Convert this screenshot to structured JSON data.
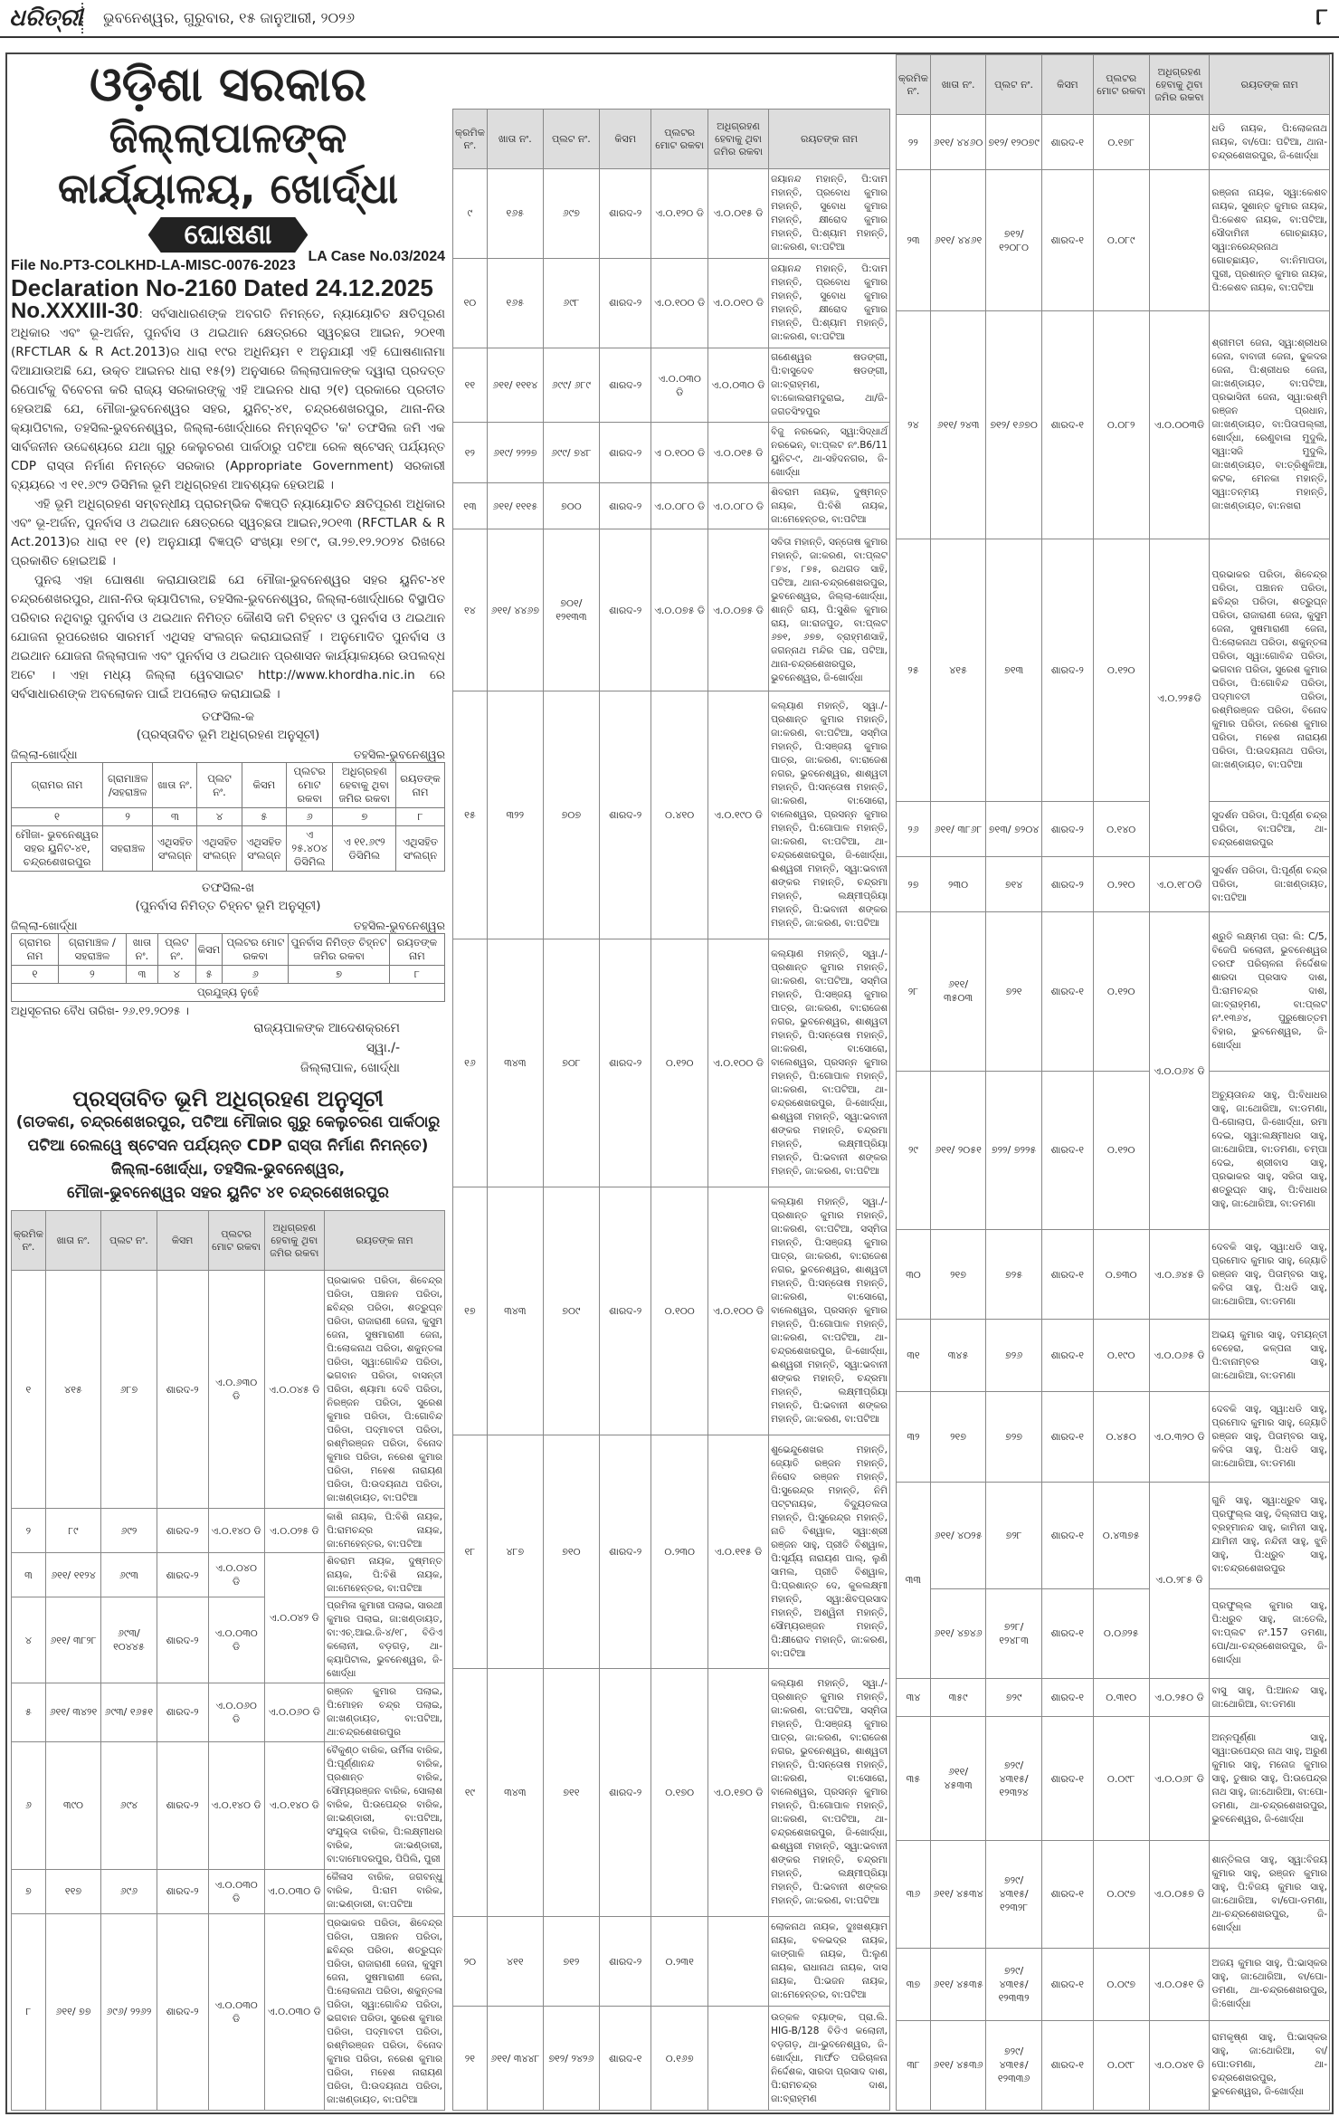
{
  "header": {
    "logo": "ଧରିତ୍ରୀ",
    "dateline": "ଭୁବନେଶ୍ୱର, ଗୁରୁବାର, ୧୫ ଜାନୁଆରୀ, ୨୦୨୬",
    "page": "୮"
  },
  "notice": {
    "title1": "ଓଡ଼ିଶା ସରକାର",
    "title2": "ଜିଲ୍ଲାପାଳଙ୍କ କାର୍ଯ୍ୟାଳୟ, ଖୋର୍ଦ୍ଧା",
    "banner": "ଘୋଷଣା",
    "file_no": "File No.PT3-COLKHD-LA-MISC-0076-2023",
    "declaration": "Declaration No-2160 Dated 24.12.2025",
    "la_case": "LA Case No.03/2024",
    "ref_no": "No.XXXIII-30",
    "para1": ": ସର୍ବସାଧାରଣଙ୍କ ଅବଗତି ନିମନ୍ତେ, ନ୍ୟାୟୋଚିତ କ୍ଷତିପୂରଣ ଅଧିକାର ଏବଂ ଭୂ-ଅର୍ଜନ, ପୁନର୍ବାସ ଓ ଥଇଥାନ କ୍ଷେତ୍ରରେ ସ୍ୱଚ୍ଛତା ଆଇନ, ୨୦୧୩ (RFCTLAR & R Act.2013)ର ଧାରା ୧୯ର ଅଧିନିୟମ ୧ ଅନୁଯାୟୀ ଏହି ଘୋଷଣାନାମା ଦିଆଯାଉଅଛି ଯେ, ଉକ୍ତ ଆଇନର ଧାରା ୧୫(୨) ଅନୁସାରେ ଜିଲ୍ଲାପାଳଙ୍କ ଦ୍ୱାରା ପ୍ରଦତ୍ତ ରିପୋର୍ଟକୁ ବିବେଚନା କରି ରାଜ୍ୟ ସରକାରଙ୍କୁ ଏହି ଆଇନର ଧାରା ୨(୧) ପ୍ରକାରେ ପ୍ରତୀତ ହେଉଅଛି ଯେ, ମୌଜା-ଭୁବନେଶ୍ୱର ସହର, ୟୁନିଟ୍-୪୧, ଚନ୍ଦ୍ରଶେଖରପୁର, ଥାନା-ନିଉ କ୍ୟାପିଟାଲ, ତହସିଲ-ଭୁବନେଶ୍ୱର, ଜିଲ୍ଲା-ଖୋର୍ଦ୍ଧାରେ ନିମ୍ନସୂଚିତ 'କ' ତଫସିଲ ଜମି ଏକ ସାର୍ବଜନୀନ ଉଦ୍ଦେଶ୍ୟରେ ଯଥା ଗୁରୁ କେଲୁଚରଣ ପାର୍କଠାରୁ ପଟିଆ ରେଳ ଷ୍ଟେସନ୍ ପର୍ଯ୍ୟନ୍ତ CDP ରାସ୍ତା ନିର୍ମାଣ ନିମନ୍ତେ ସରକାର (Appropriate Government) ସରକାରୀ ବ୍ୟୟରେ ଏ ୧୧.୬୯୨ ଡିସିମିଲ ଭୂମି ଅଧିଗ୍ରହଣ ଆବଶ୍ୟକ ହେଉଅଛି ।",
    "para2": "ଏହି ଭୂମି ଅଧିଗ୍ରହଣ ସମ୍ବନ୍ଧୀୟ ପ୍ରାରମ୍ଭିକ ବିଜ୍ଞପ୍ତି ନ୍ୟାୟୋଚିତ କ୍ଷତିପୂରଣ ଅଧିକାର ଏବଂ ଭୂ-ଅର୍ଜନ, ପୁନର୍ବାସ ଓ ଥଇଥାନ କ୍ଷେତ୍ରରେ ସ୍ୱଚ୍ଛତା ଆଇନ,୨୦୧୩ (RFCTLAR & R Act.2013)ର ଧାରା ୧୧ (୧) ଅନୁଯାୟୀ ବିଜ୍ଞପ୍ତି ସଂଖ୍ୟା ୧୭୮୯, ତା.୨୭.୧୨.୨୦୨୪ ରିଖରେ ପ୍ରକାଶିତ ହୋଇଅଛି ।",
    "para3": "ପୁନଶ୍ଚ ଏହା ଘୋଷଣା କରାଯାଉଅଛି ଯେ ମୌଜା-ଭୁବନେଶ୍ୱର ସହର ୟୁନିଟ-୪୧ ଚନ୍ଦ୍ରଶେଖରପୁର, ଥାନା-ନିଉ କ୍ୟାପିଟାଲ, ତହସିଲ-ଭୁବନେଶ୍ୱର, ଜିଲ୍ଲା-ଖୋର୍ଦ୍ଧାରେ ବିସ୍ଥାପିତ ପରିବାର ନଥିବାରୁ ପୁନର୍ବାସ ଓ ଥଇଥାନ ନିମିତ୍ତ କୌଣସି ଜମି ଚିହ୍ନଟ ଓ ପୁନର୍ବାସ ଓ ଥଇଥାନ ଯୋଜନା ରୂପରେଖର ସାରମର୍ମ ଏଥିସହ ସଂଲଗ୍ନ କରାଯାଇନାହିଁ । ଅନୁମୋଦିତ ପୁନର୍ବାସ ଓ ଥଇଥାନ ଯୋଜନା ଜିଲ୍ଲାପାଳ ଏବଂ ପୁନର୍ବାସ ଓ ଥଇଥାନ ପ୍ରଶାସନ କାର୍ଯ୍ୟାଳୟରେ ଉପଲବ୍ଧ ଅଟେ । ଏହା ମଧ୍ୟ ଜିଲ୍ଲା ୱେବସାଇଟ http://www.khordha.nic.in ରେ ସର୍ବସାଧାରଣଙ୍କ ଅବଲୋକନ ପାଇଁ ଅପଲୋଡ କରାଯାଇଛି ।",
    "schedule_ka": {
      "title": "ତଫସିଲ-କ",
      "subtitle": "(ପ୍ରସ୍ତାବିତ ଭୂମି ଅଧିଗ୍ରହଣ ଅନୁସୂଚୀ)",
      "district": "ଜିଲ୍ଲା-ଖୋର୍ଦ୍ଧା",
      "tahasil": "ତହସିଲ-ଭୁବନେଶ୍ୱର",
      "headers": [
        "ଗ୍ରାମର ନାମ",
        "ଗ୍ରାମାଞ୍ଚଳ /ସହରାଞ୍ଚଳ",
        "ଖାତା ନଂ.",
        "ପ୍ଲଟ ନଂ.",
        "କିସମ",
        "ପ୍ଲଟର ମୋଟ ରକବା",
        "ଅଧିଗ୍ରହଣ ହେବାକୁ ଥିବା ଜମିର ରକବା",
        "ରୟତଙ୍କ ନାମ"
      ],
      "numbers": [
        "୧",
        "୨",
        "୩",
        "୪",
        "୫",
        "୬",
        "୭",
        "୮"
      ],
      "row": [
        "ମୌଜା- ଭୁବନେଶ୍ୱର ସହର ୟୁନିଟ-୪୧, ଚନ୍ଦ୍ରଶେଖରପୁର",
        "ସହରାଞ୍ଚଳ",
        "ଏଥିସହିତ ସଂଲଗ୍ନ",
        "ଏଥିସହିତ ସଂଲଗ୍ନ",
        "ଏଥିସହିତ ସଂଲଗ୍ନ",
        "ଏ ୨୫.୪୦୪ ଡିସିମିଲ",
        "ଏ ୧୧.୬୯୨ ଡିସିମିଲ",
        "ଏଥିସହିତ ସଂଲଗ୍ନ"
      ]
    },
    "schedule_kha": {
      "title": "ତଫସିଲ-ଖ",
      "subtitle": "(ପୁନର୍ବାସ ନିମିତ୍ତ ଚିହ୍ନଟ ଭୂମି ଅନୁସୂଚୀ)",
      "district": "ଜିଲ୍ଲା-ଖୋର୍ଦ୍ଧା",
      "tahasil": "ତହସିଲ-ଭୁବନେଶ୍ୱର",
      "headers": [
        "ଗ୍ରାମର ନାମ",
        "ଗ୍ରାମାଞ୍ଚଳ /ସହରାଞ୍ଚଳ",
        "ଖାତା ନଂ.",
        "ପ୍ଲଟ ନଂ.",
        "କିସମ",
        "ପ୍ଲଟର ମୋଟ ରକବା",
        "ପୁନର୍ବାସ ନିମିତ୍ତ ଚିହ୍ନଟ ଜମିର ରକବା",
        "ରୟତଙ୍କ ନାମ"
      ],
      "numbers": [
        "୧",
        "୨",
        "୩",
        "୪",
        "୫",
        "୬",
        "୭",
        "୮"
      ],
      "row": "ପ୍ରଯୁଜ୍ୟ ନୁହେଁ"
    },
    "validity": "ଅଧିସୂଚନାର ବୈଧ ତାରିଖ- ୨୬.୧୨.୨୦୨୫ ।",
    "sign1": "ରାଜ୍ୟପାଳଙ୍କ ଆଦେଶକ୍ରମେ",
    "sign2": "ସ୍ୱା./-",
    "sign3": "ଜିଲ୍ଲାପାଳ, ଖୋର୍ଦ୍ଧା"
  },
  "schedule": {
    "heading": "ପ୍ରସ୍ତାବିତ ଭୂମି ଅଧିଗ୍ରହଣ ଅନୁସୂଚୀ",
    "line1": "(ଗଡକଣ, ଚନ୍ଦ୍ରଶେଖରପୁର, ପଟିଆ ମୌଜାର ଗୁରୁ କେଲୁଚରଣ ପାର୍କଠାରୁ",
    "line2": "ପଟିଆ ରେଲୱେ ଷ୍ଟେସନ ପର୍ଯ୍ୟନ୍ତ CDP ରାସ୍ତା ନିର୍ମାଣ ନିମନ୍ତେ)",
    "line3": "ଜିଲ୍ଲା-ଖୋର୍ଦ୍ଧା, ତହସିଲ-ଭୁବନେଶ୍ୱର,",
    "line4": "ମୌଜା-ଭୁବନେଶ୍ୱର ସହର ୟୁନିଟ ୪୧ ଚନ୍ଦ୍ରଶେଖରପୁର",
    "columns": [
      "କ୍ରମିକ ନଂ.",
      "ଖାତା ନଂ.",
      "ପ୍ଲଟ ନଂ.",
      "କିସମ",
      "ପ୍ଲଟର ମୋଟ ରକବା",
      "ଅଧିଗ୍ରହଣ ହେବାକୁ ଥିବା ଜମିର ରକବା",
      "ରୟତଙ୍କ ନାମ"
    ],
    "tables": [
      [
        {
          "sl": "୧",
          "khata": "୪୧୫",
          "plot": "୬୮୭",
          "kisam": "ଶାରଦ-୨",
          "total": "ଏ.୦.୬୩୦ ଡି",
          "acq": "ଏ.୦.୦୪୫ ଡି",
          "owner": "ପ୍ରଭାକର ପରିଡା, ଶିବେନ୍ଦ୍ର ପରିଡା, ପଞ୍ଚାନନ ପରିଡା, ଛବିନ୍ଦ୍ର ପରିଡା, ଶତ୍ରୁଘ୍ନ ପରିଡା, ରାଜାରାଣୀ ଜେନା, କୁସୁମ ଜେନା, ସୁଷମାରାଣୀ ଜେନା, ପି:ଲୋକନାଥ ପରିଡା, ଶକୁନ୍ତଳା ପରିଡା, ସ୍ୱା:ଗୋବିନ୍ଦ ପରିଡା, ଭଗବାନ ପରିଡା, ବାସନ୍ତୀ ପରିଡା, ଶ୍ୟାମା ଦେବି ପରିଡା, ନିରଞ୍ଜନ ପରିଡା, ସୁରେଶ କୁମାର ପରିଡା, ପି:ଗୋବିନ୍ଦ ପରିଡା, ପଦ୍ମାବତୀ ପରିଡା, ରଶ୍ମିରଞ୍ଜନ ପରିଡା, ବିନୋଦ କୁମାର ପରିଡା, ନରେଶ କୁମାର ପରିଡା, ମହେଶ ନାରାୟଣ ପରିଡା, ପି:ଉଦୟନାଥ ପରିଡା, ଜା:ଖଣ୍ଡାୟତ, ବା:ପଟିଆ"
        },
        {
          "sl": "୨",
          "khata": "୮୯",
          "plot": "୬୯୨",
          "kisam": "ଶାରଦ-୨",
          "total": "ଏ.୦.୧୪୦ ଡି",
          "acq": "ଏ.୦.୦୨୫ ଡି",
          "owner": "କାଶି ନାୟକ, ପି:ବିଶି ନାୟକ, ପି:ରାମଚନ୍ଦ୍ର ନାୟକ, ଜା:ମେହେନ୍ତର, ବା:ପଟିଆ"
        },
        {
          "sl": "୩",
          "khata": "୬୧୧/ ୧୧୨୪",
          "plot": "୬୯୩",
          "kisam": "ଶାରଦ-୨",
          "total": "ଏ.୦.୦୪୦ ଡି",
          "acq": "ଏ.୦.୦୪୨ ଡି",
          "acq_span": 2,
          "owner": "ଶିବରାମ ନାୟକ, ଦୁଷ୍ମନ୍ତ ନାୟକ, ପି:ବିଶି ନାୟକ, ଜା:ମେହେନ୍ତର, ବା:ପଟିଆ"
        },
        {
          "sl": "୪",
          "khata": "୬୧୧/ ୩୮୨୮",
          "plot": "୬୯୩/ ୧୦୪୪୫",
          "kisam": "ଶାରଦ-୨",
          "total": "ଏ.୦.୦୩୦ ଡି",
          "owner": "ପ୍ରମିଳା କୁମାରୀ ପଲାଇ, ସାରଥୀ କୁମାର ପଲାଇ, ଜା:ଖଣ୍ଡାୟତ, ବା:ଏଚ୍.ଆଇ.ଜି-୪/୧୮, ବିଡିଏ କଲୋନୀ, ବଡ଼ଗଡ଼, ଥା-କ୍ୟାପିଟାଲ, ଭୁବନେଶ୍ୱର, ଜି-ଖୋର୍ଦ୍ଧା"
        },
        {
          "sl": "୫",
          "khata": "୬୧୧/ ୩୪୨୧",
          "plot": "୬୯୩/ ୧୬୫୧",
          "kisam": "ଶାରଦ-୨",
          "total": "ଏ.୦.୦୬୦ ଡି",
          "acq": "ଏ.୦.୦୬୦ ଡି",
          "owner": "ରଞ୍ଜନ କୁମାର ପଲାଇ, ପି:ମୋହନ ଚନ୍ଦ୍ର ପଲାଇ, ଜା:ଖଣ୍ଡାୟତ, ବା:ପଟିଆ, ଥା:ଚନ୍ଦ୍ରଶେଖରପୁର"
        },
        {
          "sl": "୬",
          "khata": "୩୯୦",
          "plot": "୬୯୪",
          "kisam": "ଶାରଦ-୨",
          "total": "ଏ.୦.୧୪୦ ଡି",
          "acq": "ଏ.୦.୧୪୦ ଡି",
          "owner": "ବୈକୁଣ୍ଠ ବାରିକ, ଉର୍ମିଳା ବାରିକ, ପି:ପୂର୍ଣ୍ଣାନନ୍ଦ ବାରିକ, ପ୍ରଶାନ୍ତ ବାରିକ, ସୌମ୍ୟରଞ୍ଜନ ବାରିକ, ସୋଲାଶ ବାରିକ, ପି:ଉପେନ୍ଦ୍ର ବାରିକ, ଜା:ଭଣ୍ଡାରୀ, ବା:ପଟିଆ, ସଂଯୁକ୍ତା ବାରିକ, ପି:ଲକ୍ଷ୍ମୀଧର ବାରିକ, ଜା:ଭଣ୍ଡାରୀ, ବା:ଦାମୋଦରପୁର, ପିପିଲି, ପୁରୀ"
        },
        {
          "sl": "୭",
          "khata": "୧୧୭",
          "plot": "୬୯୬",
          "kisam": "ଶାରଦ-୨",
          "total": "ଏ.୦.୦୩୦ ଡି",
          "acq": "ଏ.୦.୦୩୦ ଡି",
          "owner": "କୈଳାସ ବାରିକ, ଜଗବନ୍ଧୁ ବାରିକ, ପି:ରାମ ବାରିକ, ଜା:ଭଣ୍ଡାରୀ, ବା:ପଟିଆ"
        },
        {
          "sl": "୮",
          "khata": "୬୧୧/ ୭୭",
          "plot": "୬୯୬/ ୨୨୬୨",
          "kisam": "ଶାରଦ-୨",
          "total": "ଏ.୦.୦୩୦ ଡି",
          "acq": "ଏ.୦.୦୩୦ ଡି",
          "owner": "ପ୍ରଭାକର ପରିଡା, ଶିବେନ୍ଦ୍ର ପରିଡା, ପଞ୍ଚାନନ ପରିଡା, ଛବିନ୍ଦ୍ର ପରିଡା, ଶତ୍ରୁଘ୍ନ ପରିଡା, ରାଜାରାଣୀ ଜେନା, କୁସୁମ ଜେନା, ସୁଷମାରାଣୀ ଜେନା, ପି:ଲୋକନାଥ ପରିଡା, ଶକୁନ୍ତଳା ପରିଡା, ସ୍ୱା:ଗୋବିନ୍ଦ ପରିଡା, ଭଗବାନ ପରିଡା, ସୁରେଶ କୁମାର ପରିଡା, ପଦ୍ମାବତୀ ପରିଡା, ରଶ୍ମିରଞ୍ଜନ ପରିଡା, ବିନୋଦ କୁମାର ପରିଡା, ନରେଶ କୁମାର ପରିଡା, ମହେଶ ନାରାୟଣ ପରିଡା, ପି:ଉଦୟନାଥ ପରିଡା, ଜା:ଖଣ୍ଡାୟତ, ବା:ପଟିଆ"
        }
      ],
      [
        {
          "sl": "୯",
          "khata": "୧୬୫",
          "plot": "୬୯୭",
          "kisam": "ଶାରଦ-୨",
          "total": "ଏ.୦.୧୨୦ ଡି",
          "acq": "ଏ.୦.୦୧୫ ଡି",
          "owner": "ଜୟାନନ୍ଦ ମହାନ୍ତି, ପି:ଦାମ ମହାନ୍ତି, ପ୍ରବୋଧ କୁମାର ମହାନ୍ତି, ସୁବୋଧ କୁମାର ମହାନ୍ତି, କ୍ଷୀରୋଦ କୁମାର ମହାନ୍ତି, ପି:ଶ୍ୟାମ ମହାନ୍ତି, ଜା:କରଣ, ବା:ପଟିଆ"
        },
        {
          "sl": "୧୦",
          "khata": "୧୬୫",
          "plot": "୬୯୮",
          "kisam": "ଶାରଦ-୨",
          "total": "ଏ.୦.୧୦୦ ଡି",
          "acq": "ଏ.୦.୦୧୦ ଡି",
          "owner": "ଜୟାନନ୍ଦ ମହାନ୍ତି, ପି:ଦାମ ମହାନ୍ତି, ପ୍ରବୋଧ କୁମାର ମହାନ୍ତି, ସୁବୋଧ କୁମାର ମହାନ୍ତି, କ୍ଷୀରୋଦ କୁମାର ମହାନ୍ତି, ପି:ଶ୍ୟାମ ମହାନ୍ତି, ଜା:କରଣ, ବା:ପଟିଆ"
        },
        {
          "sl": "୧୧",
          "khata": "୬୧୧/ ୧୧୧୪",
          "plot": "୬୯୯/ ୬୮୯",
          "kisam": "ଶାରଦ-୨",
          "total": "ଏ.୦.୦୩୦ ଡି",
          "acq": "ଏ.୦.୦୩୦ ଡି",
          "owner": "ଗଣେଶ୍ୱର ଷଡଙ୍ଗୀ, ପି:ବାସୁଦେବ ଷଡଙ୍ଗୀ, ଜା:ବ୍ରାହ୍ମଣ, ବା:କୋଲରାମଦୁରାଇ, ଥା/ଜି-ଜଗତସିଂହପୁର"
        },
        {
          "sl": "୧୨",
          "khata": "୬୧୯/ ୨୨୨୭",
          "plot": "୬୯୯/ ୭୪୮",
          "kisam": "ଶାରଦ-୨",
          "total": "ଏ ୦.୧୦୦ ଡି",
          "acq": "ଏ.୦.୦୧୫ ଡି",
          "owner": "ବିଜୁ ନରଭେନ୍, ସ୍ୱା:ସିଦ୍ଧାର୍ଥ ନରଭେନ୍, ବା:ପ୍ଲଟ ନଂ.B6/11 ୟୁନିଟ-୯, ଥା-ସହିଦନଗର, ଜି-ଖୋର୍ଦ୍ଧା"
        },
        {
          "sl": "୧୩",
          "khata": "୬୧୧/ ୧୧୧୫",
          "plot": "୭୦୦",
          "kisam": "ଶାରଦ-୨",
          "total": "ଏ.୦.୦୮୦ ଡି",
          "acq": "ଏ.୦.୦୮୦ ଡି",
          "owner": "ଶିବରାମ ନାୟକ, ଦୁଷ୍ମନ୍ତ ନାୟକ, ପି:ବିଶି ନାୟକ, ଜା:ମେହେନ୍ତର, ବା:ପଟିଆ"
        },
        {
          "sl": "୧୪",
          "khata": "୬୧୧/ ୪୪୬୭",
          "plot": "୭୦୧/ ୧୨୧୩୩",
          "kisam": "ଶାରଦ-୨",
          "total": "ଏ.୦.୦୭୫ ଡି",
          "acq": "ଏ.୦.୦୭୫ ଡି",
          "owner": "ସବିତା ମହାନ୍ତି, ସନ୍ତୋଷ କୁମାର ମହାନ୍ତି, ଜା:କରଣ, ବା:ପ୍ଲଟ ୮୭୪, ୮୭୫, ରଥଗଡ ସାହି, ପଟିଆ, ଥାନା-ଚନ୍ଦ୍ରଶେଖରପୁର, ଭୁବନେଶ୍ୱର, ଜିଲ୍ଲା-ଖୋର୍ଦ୍ଧା, ଶାନ୍ତି ରାୟ, ପି:ସୁଶିଳ କୁମାର ରାୟ, ଜା:ରାଜପୁତ, ବା:ପ୍ଲଟ ୬୭୧, ୬୭୭, ବ୍ରାହ୍ମଣସାହି, ଜଗନ୍ନାଥ ମନ୍ଦିର ପଛ, ପଟିଆ, ଥାନା-ଚନ୍ଦ୍ରଶେଖରପୁର, ଭୁବନେଶ୍ୱର, ଜି-ଖୋର୍ଦ୍ଧା"
        },
        {
          "sl": "୧୫",
          "khata": "୩୨୨",
          "plot": "୭୦୭",
          "kisam": "ଶାରଦ-୨",
          "total": "୦.୪୧୦",
          "acq": "ଏ.୦.୧୯୦ ଡି",
          "owner": "କଲ୍ୟାଣ ମହାନ୍ତି, ସ୍ୱା./-ପ୍ରଶାନ୍ତ କୁମାର ମହାନ୍ତି, ଜା:କରଣ, ବା:ପଟିଆ, ସସ୍ମିତା ମହାନ୍ତି, ପି:ସଞ୍ଜୟ କୁମାର ପାତ୍ର, ଜା:କରଣ, ବା:ରାଜେଶ ନଗର, ଭୁବନେଶ୍ୱର, ଶାଶ୍ୱତୀ ମହାନ୍ତି, ପି:ସନ୍ତୋଷ ମହାନ୍ତି, ଜା:କରଣ, ବା:ସୋରୋ, ବାଲେଶ୍ୱର, ପ୍ରସନ୍ନ କୁମାର ମହାନ୍ତି, ପି:ଗୋପାଳ ମହାନ୍ତି, ଜା:କରଣ, ବା:ପଟିଆ, ଥା-ଚନ୍ଦ୍ରଶେଖରପୁର, ଜି-ଖୋର୍ଦ୍ଧା, ଈଶ୍ୱରୀ ମହାନ୍ତି, ସ୍ୱା:ଭବାନୀ ଶଙ୍କର ମହାନ୍ତି, ଚନ୍ଦ୍ରମା ମହାନ୍ତି, ଲକ୍ଷ୍ମୀପ୍ରିୟା ମହାନ୍ତି, ପି:ଭବାନୀ ଶଙ୍କର ମହାନ୍ତି, ଜା:କରଣ, ବା:ପଟିଆ"
        },
        {
          "sl": "୧୬",
          "khata": "୩୪୩",
          "plot": "୭୦୮",
          "kisam": "ଶାରଦ-୨",
          "total": "୦.୧୨୦",
          "acq": "ଏ.୦.୧୦୦ ଡି",
          "owner": "କଲ୍ୟାଣ ମହାନ୍ତି, ସ୍ୱା./-ପ୍ରଶାନ୍ତ କୁମାର ମହାନ୍ତି, ଜା:କରଣ, ବା:ପଟିଆ, ସସ୍ମିତା ମହାନ୍ତି, ପି:ସଞ୍ଜୟ କୁମାର ପାତ୍ର, ଜା:କରଣ, ବା:ରାଜେଶ ନଗର, ଭୁବନେଶ୍ୱର, ଶାଶ୍ୱତୀ ମହାନ୍ତି, ପି:ସନ୍ତୋଷ ମହାନ୍ତି, ଜା:କରଣ, ବା:ସୋରୋ, ବାଲେଶ୍ୱର, ପ୍ରସନ୍ନ କୁମାର ମହାନ୍ତି, ପି:ଗୋପାଳ ମହାନ୍ତି, ଜା:କରଣ, ବା:ପଟିଆ, ଥା-ଚନ୍ଦ୍ରଶେଖରପୁର, ଜି-ଖୋର୍ଦ୍ଧା, ଈଶ୍ୱରୀ ମହାନ୍ତି, ସ୍ୱା:ଭବାନୀ ଶଙ୍କର ମହାନ୍ତି, ଚନ୍ଦ୍ରମା ମହାନ୍ତି, ଲକ୍ଷ୍ମୀପ୍ରିୟା ମହାନ୍ତି, ପି:ଭବାନୀ ଶଙ୍କର ମହାନ୍ତି, ଜା:କରଣ, ବା:ପଟିଆ"
        },
        {
          "sl": "୧୭",
          "khata": "୩୪୩",
          "plot": "୭୦୯",
          "kisam": "ଶାରଦ-୨",
          "total": "୦.୧୦୦",
          "acq": "ଏ.୦.୧୦୦ ଡି",
          "owner": "କଲ୍ୟାଣ ମହାନ୍ତି, ସ୍ୱା./-ପ୍ରଶାନ୍ତ କୁମାର ମହାନ୍ତି, ଜା:କରଣ, ବା:ପଟିଆ, ସସ୍ମିତା ମହାନ୍ତି, ପି:ସଞ୍ଜୟ କୁମାର ପାତ୍ର, ଜା:କରଣ, ବା:ରାଜେଶ ନଗର, ଭୁବନେଶ୍ୱର, ଶାଶ୍ୱତୀ ମହାନ୍ତି, ପି:ସନ୍ତୋଷ ମହାନ୍ତି, ଜା:କରଣ, ବା:ସୋରୋ, ବାଲେଶ୍ୱର, ପ୍ରସନ୍ନ କୁମାର ମହାନ୍ତି, ପି:ଗୋପାଳ ମହାନ୍ତି, ଜା:କରଣ, ବା:ପଟିଆ, ଥା-ଚନ୍ଦ୍ରଶେଖରପୁର, ଜି-ଖୋର୍ଦ୍ଧା, ଈଶ୍ୱରୀ ମହାନ୍ତି, ସ୍ୱା:ଭବାନୀ ଶଙ୍କର ମହାନ୍ତି, ଚନ୍ଦ୍ରମା ମହାନ୍ତି, ଲକ୍ଷ୍ମୀପ୍ରିୟା ମହାନ୍ତି, ପି:ଭବାନୀ ଶଙ୍କର ମହାନ୍ତି, ଜା:କରଣ, ବା:ପଟିଆ"
        },
        {
          "sl": "୧୮",
          "khata": "୪୮୭",
          "plot": "୭୧୦",
          "kisam": "ଶାରଦ-୨",
          "total": "୦.୨୩୦",
          "acq": "ଏ.୦.୧୧୫ ଡି",
          "owner": "ଶୁଭେନ୍ଦୁଶେଖର ମହାନ୍ତି, ଜ୍ୟୋତି ରଞ୍ଜନ ମହାନ୍ତି, ନିରୋଦ ରଞ୍ଜନ ମହାନ୍ତି, ପି:ସୁରେନ୍ଦ୍ର ମହାନ୍ତି, ନିମି ପଟ୍ଟନାୟକ, ବିଦ୍ୟୁତଲତା ମହାନ୍ତି, ପି:ସୁରେନ୍ଦ୍ର ମହାନ୍ତି, ନାତି ବିଶ୍ୱାଳ, ସ୍ୱା:ଶ୍ରୀ ରଞ୍ଜନ ସାହୁ, ପ୍ରୀତି ବିଶ୍ୱାଳ, ପି:ସୂର୍ଯ୍ୟ ନାରାୟଣ ପାଲ୍, ଲୁଣି ସାମଲ, ପ୍ରୀତି ବିଶ୍ୱାଳ, ପି:ପ୍ରଶାନ୍ତ ଦେ, କୁଳଲକ୍ଷ୍ମୀ ମହାନ୍ତି, ସ୍ୱା:ଶିବପ୍ରସାଦ ମହାନ୍ତି, ଅଶ୍ୱିନୀ ମହାନ୍ତି, ସୌମ୍ୟରଞ୍ଜନ ମହାନ୍ତି, ପି:କ୍ଷୀରୋଦ ମହାନ୍ତି, ଜା:କରଣ, ବା:ପଟିଆ"
        },
        {
          "sl": "୧୯",
          "khata": "୩୪୩",
          "plot": "୭୧୧",
          "kisam": "ଶାରଦ-୨",
          "total": "୦.୧୭୦",
          "acq": "ଏ.୦.୧୭୦ ଡି",
          "owner": "କଲ୍ୟାଣ ମହାନ୍ତି, ସ୍ୱା./-ପ୍ରଶାନ୍ତ କୁମାର ମହାନ୍ତି, ଜା:କରଣ, ବା:ପଟିଆ, ସସ୍ମିତା ମହାନ୍ତି, ପି:ସଞ୍ଜୟ କୁମାର ପାତ୍ର, ଜା:କରଣ, ବା:ରାଜେଶ ନଗର, ଭୁବନେଶ୍ୱର, ଶାଶ୍ୱତୀ ମହାନ୍ତି, ପି:ସନ୍ତୋଷ ମହାନ୍ତି, ଜା:କରଣ, ବା:ସୋରୋ, ବାଲେଶ୍ୱର, ପ୍ରସନ୍ନ କୁମାର ମହାନ୍ତି, ପି:ଗୋପାଳ ମହାନ୍ତି, ଜା:କରଣ, ବା:ପଟିଆ, ଥା-ଚନ୍ଦ୍ରଶେଖରପୁର, ଜି-ଖୋର୍ଦ୍ଧା, ଈଶ୍ୱରୀ ମହାନ୍ତି, ସ୍ୱା:ଭବାନୀ ଶଙ୍କର ମହାନ୍ତି, ଚନ୍ଦ୍ରମା ମହାନ୍ତି, ଲକ୍ଷ୍ମୀପ୍ରିୟା ମହାନ୍ତି, ପି:ଭବାନୀ ଶଙ୍କର ମହାନ୍ତି, ଜା:କରଣ, ବା:ପଟିଆ"
        },
        {
          "sl": "୨୦",
          "khata": "୪୧୧",
          "plot": "୭୧୨",
          "kisam": "ଶାରଦ-୨",
          "total": "୦.୨୩୧",
          "acq": "",
          "owner": "ଲୋକନାଥ ନାୟକ, ଦୁଃଖଶ୍ୟାମ ନାୟକ, ବଳଭଦ୍ର ନାୟକ, କାଙ୍ଗାଳି ନାୟକ, ପି:ଲୁଣ ନାୟକ, ରାଧାନାଥ ନାୟକ, ଦାସ ନାୟକ, ପି:ଭଜନ ନାୟକ, ଜା:ମେହେନ୍ତର, ବା:ପଟିଆ"
        },
        {
          "sl": "୨୧",
          "khata": "୬୧୧/ ୩୪୪୮",
          "plot": "୭୧୨/ ୨୪୨୬",
          "kisam": "ଶାରଦ-୧",
          "total": "୦.୧୬୭",
          "acq": "",
          "owner": "ଉତ୍କଳ ବ୍ୟାଙ୍କ, ପ୍ରା.ଲି. HIG-B/128 ବିଡିଏ କଲୋନୀ, ବଡ଼ଗଡ଼, ଥା-ଭୁବନେଶ୍ୱର, ଜି-ଖୋର୍ଦ୍ଧା, ମାର୍ଫତ ପରିଚାଳନା ନିର୍ଦ୍ଦେଶକ, ସାରଦା ପ୍ରସାଦ ଦାଶ, ପି:ରାମଚନ୍ଦ୍ର ଦାଶ, ଜା:ବ୍ରାହ୍ମଣ"
        }
      ],
      [
        {
          "sl": "୨୨",
          "khata": "୬୧୧/ ୪୪୬୦",
          "plot": "୭୧୨/ ୧୨୦୭୯",
          "kisam": "ଶାରଦ-୧",
          "total": "୦.୧୭୮",
          "acq": "",
          "owner": "ଧଡି ନାୟକ, ପି:ଲୋକନାଥ ନାୟକ, ବା/ପୋ: ପଟିଆ, ଥାନା-ଚନ୍ଦ୍ରଶେଖରପୁର, ଜି-ଖୋର୍ଦ୍ଧା"
        },
        {
          "sl": "୨୩",
          "khata": "୬୧୧/ ୪୪୬୧",
          "plot": "୭୧୨/ ୧୨୦୮୦",
          "kisam": "ଶାରଦ-୧",
          "total": "୦.୦୮୯",
          "acq": "",
          "owner": "ରଞ୍ଜନା ନାୟକ, ସ୍ୱା:କେଶବ ନାୟକ, ସୁଶାନ୍ତ କୁମାର ନାୟକ, ପି:କେଶବ ନାୟକ, ବା:ପଟିଆ, ସୌଦାମିନୀ ଗୋଚ୍ଛାୟତ, ସ୍ୱା:ନରେନ୍ଦ୍ରନାଥ ଗୋଚ୍ଛାୟତ, ବା:ନିମାପଡା, ପୁରୀ, ପ୍ରଶାନ୍ତ କୁମାର ନାୟକ, ପି:କେଶବ ନାୟକ, ବା:ପଟିଆ"
        },
        {
          "sl": "୨୪",
          "khata": "୬୧୧/ ୨୪୩",
          "plot": "୭୧୨/ ୧୬୭୦",
          "kisam": "ଶାରଦ-୧",
          "total": "୦.୦୮୨",
          "acq": "ଏ.୦.୦୦୩ଡି",
          "owner": "ଶ୍ରୀମତୀ ଜେନା, ସ୍ୱା:ଶ୍ରୀଧର ଜେନା, ବାବାଜୀ ଜେନା, ଢୁକଦର ଜେନା, ପି:ଶ୍ରୀଧର ଜେନା, ଜା:ଖଣ୍ଡାୟତ, ବା:ପଟିଆ, ପ୍ରଭାସିନୀ ଜେନା, ସ୍ୱା:ରଶ୍ମି ରଞ୍ଜନ ପ୍ରଧାନ, ଜା:ଖଣ୍ଡାୟତ, ବା:ପିତାପଲ୍ଲୀ, ଖୋର୍ଦ୍ଧା, ରେଣୁବାଳା ମୁଦୁଲି, ସ୍ୱା:ସଜି ମୁଦୁଲି, ଜା:ଖଣ୍ଡାୟତ, ବା:ତ୍ରିଶୁଳିଆ, କଟକ, ମେନକା ମହାନ୍ତି, ସ୍ୱା:ତନ୍ମୟ ମହାନ୍ତି, ଜା:ଖଣ୍ଡାୟତ, ବା:ନଖରା"
        },
        {
          "sl": "୨୫",
          "khata": "୪୧୫",
          "plot": "୭୧୩",
          "kisam": "ଶାରଦ-୨",
          "total": "୦.୧୨୦",
          "acq": "ଏ.୦.୨୨୫ଡି",
          "acq_span": 2,
          "owner": "ପ୍ରଭାକର ପରିଡା, ଶିବେନ୍ଦ୍ର ପରିଡା, ପଞ୍ଚାନନ ପରିଡା, ଛବିନ୍ଦ୍ର ପରିଡା, ଶତ୍ରୁଘ୍ନ ପରିଡା, ରାଜାରାଣୀ ଜେନା, କୁସୁମ ଜେନା, ସୁଷମାରାଣୀ ଜେନା, ପି:ଲୋକନାଥ ପରିଡା, ଶକୁନ୍ତଳା ପରିଡା, ସ୍ୱା:ଗୋବିନ୍ଦ ପରିଡା, ଭଗବାନ ପରିଡା, ସୁରେଶ କୁମାର ପରିଡା, ପି:ଗୋବିନ୍ଦ ପରିଡା, ପଦ୍ମାବତୀ ପରିଡା, ରଶ୍ମିରଞ୍ଜନ ପରିଡା, ବିନୋଦ କୁମାର ପରିଡା, ନରେଶ କୁମାର ପରିଡା, ମହେଶ ନାରାୟଣ ପରିଡା, ପି:ଉଦୟନାଥ ପରିଡା, ଜା:ଖଣ୍ଡାୟତ, ବା:ପଟିଆ"
        },
        {
          "sl": "୨୬",
          "khata": "୬୧୧/ ୩୮୬୮",
          "plot": "୭୧୩/ ୭୨୦୪",
          "kisam": "ଶାରଦ-୨",
          "total": "୦.୧୪୦",
          "owner": "ସୁଦର୍ଶନ ପରିଡା, ପି:ପୂର୍ଣ୍ଣ ଚନ୍ଦ୍ର ପରିଡା, ବା:ପଟିଆ, ଥା-ଚନ୍ଦ୍ରଶେଖରପୁର"
        },
        {
          "sl": "୨୭",
          "khata": "୨୩୦",
          "plot": "୭୧୪",
          "kisam": "ଶାରଦ-୨",
          "total": "୦.୨୧୦",
          "acq": "ଏ.୦.୧୮୦ଡି",
          "owner": "ସୁଦର୍ଶନ ପରିଡା, ପି:ପୂର୍ଣ୍ଣ ଚନ୍ଦ୍ର ପରିଡା, ଜା:ଖଣ୍ଡାୟତ, ବା:ପଟିଆ"
        },
        {
          "sl": "୨୮",
          "khata": "୬୧୧/ ୩୫୦୩",
          "plot": "୭୨୧",
          "kisam": "ଶାରଦ-୧",
          "total": "୦.୧୨୦",
          "acq": "ଏ.୦.୦୬୪ ଡି",
          "acq_span": 2,
          "owner": "ଶ୍ରୁତି ଲକ୍ଷ୍ମଣ ପ୍ରା: ଲି: C/5, ବିଜେପି କଲୋନୀ, ଭୁବନେଶ୍ୱର ତରଫ ପରିଚାଳନା ନିର୍ଦ୍ଦେଶକ ଶାରଦା ପ୍ରସାଦ ଦାଶ, ପି:ରାମଚନ୍ଦ୍ର ଦାଶ, ଜା:ବ୍ରାହ୍ମଣ, ବା:ପ୍ଲଟ ନଂ.୧୩୬୪, ପୁରୁଷୋତ୍ତମ ବିହାର, ଭୁବନେଶ୍ୱର, ଜି-ଖୋର୍ଦ୍ଧା"
        },
        {
          "sl": "୨୯",
          "khata": "୬୧୧/ ୨୦୫୧",
          "plot": "୭୨୨/ ୭୨୨୫",
          "kisam": "ଶାରଦ-୧",
          "total": "୦.୧୨୦",
          "owner": "ଅଚ୍ୟୁତାନନ୍ଦ ସାହୁ, ପି:ବିଧାଧର ସାହୁ, ଜା:ଥୋରିଆ, ବା:ଡମଣା, ପି-ଗୋଲାପ, ଜି-ଖୋର୍ଦ୍ଧା, ରମା ଦେଇ, ସ୍ୱା:ଲକ୍ଷ୍ମୀଧର ସାହୁ, ଜା:ଥୋରିଆ, ବା:ଡମଣା, ଚମ୍ପା ଦେଇ, ଶ୍ରୀବାସ ସାହୁ, ପ୍ରଭାକର ସାହୁ, ସରିତା ସାହୁ, ଶତ୍ରୁଘ୍ନ ସାହୁ, ପି:ବିଧାଧର ସାହୁ, ଜା:ଥୋରିଆ, ବା:ଡମଣା"
        },
        {
          "sl": "୩୦",
          "khata": "୨୧୭",
          "plot": "୭୨୫",
          "kisam": "ଶାରଦ-୧",
          "total": "୦.୭୩୦",
          "acq": "ଏ.୦.୬୪୫ ଡି",
          "owner": "ଦେବକି ସାହୁ, ସ୍ୱା:ଧଡି ସାହୁ, ପ୍ରମୋଦ କୁମାର ସାହୁ, ଜ୍ୟୋତି ରଞ୍ଜନ ସାହୁ, ପିତାମ୍ବର ସାହୁ, କବିତା ସାହୁ, ପି:ଧଡି ସାହୁ, ଜା:ଥୋରିଆ, ବା:ଡମଣା"
        },
        {
          "sl": "୩୧",
          "khata": "୩୪୫",
          "plot": "୭୨୬",
          "kisam": "ଶାରଦ-୧",
          "total": "୦.୧୯୦",
          "acq": "ଏ.୦.୦୬୫ ଡି",
          "owner": "ଅଭୟ କୁମାର ସାହୁ, ଦମୟନ୍ତୀ ବେହେରା, କଳ୍ପନା ସାହୁ, ପି:ବାନାମ୍ବର ସାହୁ, ଜା:ଥୋରିଆ, ବା:ଡମଣା"
        },
        {
          "sl": "୩୨",
          "khata": "୨୧୭",
          "plot": "୭୨୭",
          "kisam": "ଶାରଦ-୧",
          "total": "୦.୪୫୦",
          "acq": "ଏ.୦.୩୨୦ ଡି",
          "owner": "ଦେବକି ସାହୁ, ସ୍ୱା:ଧଡି ସାହୁ, ପ୍ରମୋଦ କୁମାର ସାହୁ, ଜ୍ୟୋତି ରଞ୍ଜନ ସାହୁ, ପିତାମ୍ବର ସାହୁ, କବିତା ସାହୁ, ପି:ଧଡି ସାହୁ, ଜା:ଥୋରିଆ, ବା:ଡମଣା"
        },
        {
          "sl": "୩୩",
          "khata": "୬୧୧/ ୪୦୨୫",
          "plot": "୭୨୮",
          "kisam": "ଶାରଦ-୧",
          "total": "୦.୪୩୭୫",
          "acq": "ଏ.୦.୨୮୫ ଡି",
          "acq_span": 2,
          "sl_span": 2,
          "owner": "ଗୁନି ସାହୁ, ସ୍ୱା:ଧ୍ରୁବ ସାହୁ, ପ୍ରଫୁଲ୍ଲ ସାହୁ, ଦିଲ୍ଲୀପ ସାହୁ, ବ୍ରହ୍ମାନନ୍ଦ ସାହୁ, କାମିନୀ ସାହୁ, ଯାମିନୀ ସାହୁ, ନନ୍ଦିନୀ ସାହୁ, ଝୁନି ସାହୁ, ପି:ଧ୍ରୁବ ସାହୁ, ବା:ଚନ୍ଦ୍ରଶେଖରପୁର"
        },
        {
          "sl": "",
          "khata": "୬୧୧/ ୪୭୪୬",
          "plot": "୭୨୮/ ୧୨୪୮୩",
          "kisam": "ଶାରଦ-୧",
          "total": "୦.୦୬୨୫",
          "owner": "ପ୍ରଫୁଲ୍ଲ କୁମାର ସାହୁ, ପି:ଧ୍ରୁବ ସାହୁ, ଜା:ତେଲି, ବା:ପ୍ଲଟ ନଂ.157 ଡମଣା, ପୋ/ଥା-ଚନ୍ଦ୍ରଶେଖରପୁର, ଜି-ଖୋର୍ଦ୍ଧା"
        },
        {
          "sl": "୩୪",
          "khata": "୩୫୯",
          "plot": "୭୨୯",
          "kisam": "ଶାରଦ-୧",
          "total": "୦.୩୧୦",
          "acq": "ଏ.୦.୨୫୦ ଡି",
          "owner": "ବାସୁ ସାହୁ, ପି:ଆନନ୍ଦ ସାହୁ, ଜା:ଥୋରିଆ, ବା:ଡମଣା"
        },
        {
          "sl": "୩୫",
          "khata": "୬୧୧/ ୪୫୩୩",
          "plot": "୭୨୯/ ୪୩୧୫/ ୧୨୩୨୪",
          "kisam": "ଶାରଦ-୧",
          "total": "୦.୦୯୮",
          "acq": "ଏ.୦.୦୬୮ ଡି",
          "owner": "ଅନ୍ନପୂର୍ଣ୍ଣା ସାହୁ, ସ୍ୱା:ଉପେନ୍ଦ୍ର ନାଥ ସାହୁ, ଅରୁଣ କୁମାର ସାହୁ, ମନୋଜ କୁମାର ସାହୁ, ତୁଷାର ସାହୁ, ପି:ଉପେନ୍ଦ୍ର ନାଥ ସାହୁ, ଜା:ଥୋରିଆ, ବା:ପୋ-ଡମଣା, ଥା-ଚନ୍ଦ୍ରଶେଖରପୁର, ଭୁବନେଶ୍ୱର, ଜି-ଖୋର୍ଦ୍ଧା"
        },
        {
          "sl": "୩୬",
          "khata": "୬୧୧/ ୪୫୩୪",
          "plot": "୭୨୯/ ୪୩୧୫/ ୧୨୩୨୮",
          "kisam": "ଶାରଦ-୧",
          "total": "୦.୦୯୭",
          "acq": "ଏ.୦.୦୫୭ ଡି",
          "owner": "ଶାନ୍ତିଲତା ସାହୁ, ସ୍ୱା:ବିଜୟ କୁମାର ସାହୁ, ରଞ୍ଜନ କୁମାର ସାହୁ, ପି:ବିଜୟ କୁମାର ସାହୁ, ଜା:ଥୋରିଆ, ବା/ପୋ-ଡମଣା, ଥା-ଚନ୍ଦ୍ରଶେଖରପୁର, ଜି-ଖୋର୍ଦ୍ଧା"
        },
        {
          "sl": "୩୭",
          "khata": "୬୧୧/ ୪୫୩୫",
          "plot": "୭୨୯/ ୪୩୧୫/ ୧୨୩୩୨",
          "kisam": "ଶାରଦ-୧",
          "total": "୦.୦୯୭",
          "acq": "ଏ.୦.୦୫୧ ଡି",
          "owner": "ଅଜୟ କୁମାର ସାହୁ, ପି:ଭାସ୍କର ସାହୁ, ଜା:ଥୋରିଆ, ବା/ପୋ-ଡମଣା, ଥା-ଚନ୍ଦ୍ରଶେଖରପୁର, ଜି:ଖୋର୍ଦ୍ଧା"
        },
        {
          "sl": "୩୮",
          "khata": "୬୧୧/ ୪୫୩୬",
          "plot": "୭୨୯/ ୪୩୧୫/ ୧୨୩୩୬",
          "kisam": "ଶାରଦ-୧",
          "total": "୦.୦୯୮",
          "acq": "ଏ.୦.୦୪୧ ଡି",
          "owner": "ରାମକୃଷ୍ଣ ସାହୁ, ପି:ଭାସ୍କର ସାହୁ, ଜା:ଥୋରିଆ, ବା/ପୋ:ଡମଣା, ଥା-ଚନ୍ଦ୍ରଶେଖରପୁର, ଭୁବନେଶ୍ୱର, ଜି-ଖୋର୍ଦ୍ଧା"
        }
      ]
    ]
  }
}
